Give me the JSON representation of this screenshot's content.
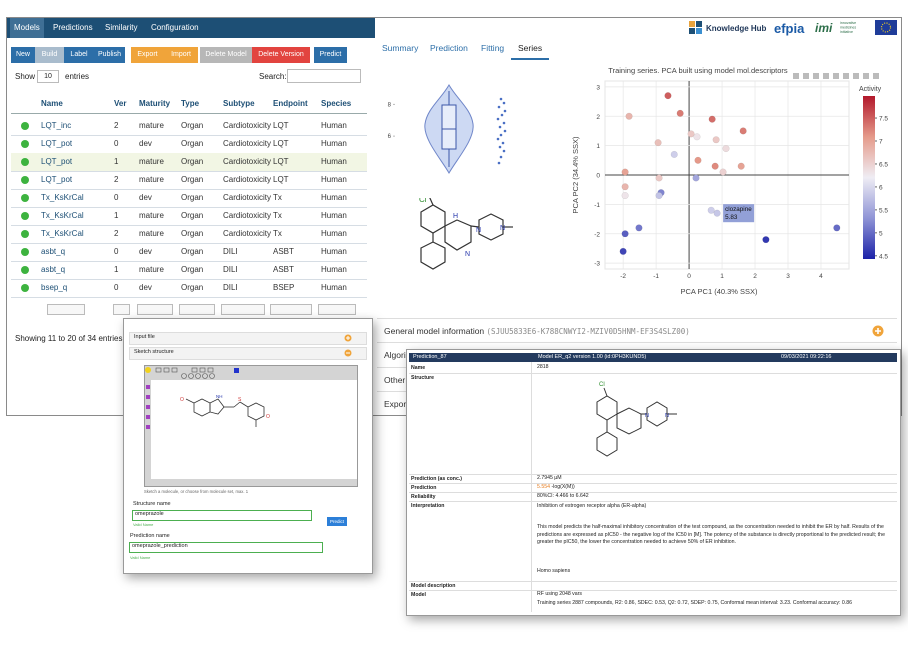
{
  "app": {
    "nav_tabs": [
      "Models",
      "Predictions",
      "Similarity",
      "Configuration"
    ],
    "buttons": [
      "New",
      "Build",
      "Label",
      "Publish",
      "Export",
      "Import",
      "Delete Model",
      "Delete Version",
      "Predict"
    ],
    "show_label": "Show",
    "page_size": "10",
    "entries_label": "entries",
    "search_label": "Search:",
    "table": {
      "columns": [
        "Name",
        "Ver",
        "Maturity",
        "Type",
        "Subtype",
        "Endpoint",
        "Species"
      ],
      "rows": [
        [
          "LQT_inc",
          "2",
          "mature",
          "Organ",
          "Cardiotoxicity",
          "LQT",
          "Human"
        ],
        [
          "LQT_pot",
          "0",
          "dev",
          "Organ",
          "Cardiotoxicity",
          "LQT",
          "Human"
        ],
        [
          "LQT_pot",
          "1",
          "mature",
          "Organ",
          "Cardiotoxicity",
          "LQT",
          "Human"
        ],
        [
          "LQT_pot",
          "2",
          "mature",
          "Organ",
          "Cardiotoxicity",
          "LQT",
          "Human"
        ],
        [
          "Tx_KsKrCal",
          "0",
          "dev",
          "Organ",
          "Cardiotoxicity",
          "Tx",
          "Human"
        ],
        [
          "Tx_KsKrCal",
          "1",
          "mature",
          "Organ",
          "Cardiotoxicity",
          "Tx",
          "Human"
        ],
        [
          "Tx_KsKrCal",
          "2",
          "mature",
          "Organ",
          "Cardiotoxicity",
          "Tx",
          "Human"
        ],
        [
          "asbt_q",
          "0",
          "dev",
          "Organ",
          "DILI",
          "ASBT",
          "Human"
        ],
        [
          "asbt_q",
          "1",
          "mature",
          "Organ",
          "DILI",
          "ASBT",
          "Human"
        ],
        [
          "bsep_q",
          "0",
          "dev",
          "Organ",
          "DILI",
          "BSEP",
          "Human"
        ]
      ]
    },
    "footer": "Showing 11 to 20 of 34 entries"
  },
  "logos": {
    "knowledge_hub": "Knowledge Hub",
    "efpia": "efpia",
    "imi": "imi",
    "imi_caption": [
      "innovative",
      "medicines",
      "initiative"
    ]
  },
  "detail_tabs": [
    "Summary",
    "Prediction",
    "Fitting",
    "Series"
  ],
  "violin": {
    "ylim": [
      3.3,
      9.6
    ],
    "yticks": [
      6,
      8
    ]
  },
  "chart_data": {
    "type": "scatter",
    "title": "Training series. PCA built using model mol.descriptors",
    "x_label": "PCA PC1 (40.3% SSX)",
    "y_label": "PCA PC2 (34.4% SSX)",
    "xlim": [
      -2.55,
      4.85
    ],
    "ylim": [
      -3.2,
      3.2
    ],
    "xticks": [
      -2,
      -1,
      0,
      1,
      2,
      3,
      4
    ],
    "yticks": [
      -3,
      -2,
      -1,
      0,
      1,
      2,
      3
    ],
    "grid": true,
    "x": [
      -0.64,
      -0.27,
      -1.82,
      0.7,
      1.64,
      0.06,
      0.24,
      -0.94,
      0.82,
      1.12,
      -0.45,
      0.27,
      0.79,
      1.58,
      1.03,
      -1.94,
      -0.91,
      0.21,
      -1.94,
      -0.85,
      -0.91,
      -1.94,
      0.67,
      0.85,
      -1.52,
      -1.94,
      2.33,
      4.48,
      -2.0
    ],
    "y": [
      2.7,
      2.1,
      2.0,
      1.9,
      1.5,
      1.4,
      1.3,
      1.1,
      1.2,
      0.9,
      0.7,
      0.5,
      0.3,
      0.3,
      0.1,
      0.1,
      -0.1,
      -0.1,
      -0.4,
      -0.6,
      -0.7,
      -0.7,
      -1.2,
      -1.3,
      -1.8,
      -2.0,
      -2.2,
      -1.8,
      -2.6
    ],
    "values": [
      7.5,
      7.3,
      6.8,
      7.4,
      7.3,
      6.6,
      6.3,
      6.7,
      6.6,
      6.4,
      5.9,
      7.1,
      7.2,
      7.0,
      6.5,
      7.0,
      6.6,
      5.5,
      6.8,
      5.2,
      5.8,
      6.3,
      5.9,
      5.83,
      5.1,
      4.9,
      4.6,
      5.0,
      4.7
    ],
    "colorbar": {
      "title": "Activity",
      "lim": [
        4.43,
        7.98
      ],
      "ticks": [
        4.5,
        5,
        5.5,
        6,
        6.5,
        7,
        7.5
      ],
      "colors": [
        "#1c22a8",
        "#8f94d6",
        "#efedf4",
        "#e59a8a",
        "#b2182b"
      ]
    },
    "annotation": {
      "text": "clozapine",
      "value": 5.83,
      "x": 0.85,
      "y": -1.3
    }
  },
  "sections": {
    "general_title": "General model information",
    "general_id": "(SJUU5833E6-K788CNWYI2-MZIV0D5HNM-EF3S4SLZ00)",
    "others": [
      "Algori",
      "Other",
      "Expor"
    ]
  },
  "sketch_dialog": {
    "panels": [
      "Input file",
      "Sketch structure"
    ],
    "hint": "Sketch a molecule, or choose from molecule set, max. 1",
    "structure_name_label": "Structure name",
    "structure_name": "omeprazole",
    "structure_valid": "Valid Name",
    "predict": "Predict",
    "prediction_name_label": "Prediction name",
    "prediction_name": "omeprazole_prediction",
    "prediction_valid": "Valid Name"
  },
  "prediction_dialog": {
    "header": [
      "Prediction_87",
      "Model ER_q2 version 1.00 (id:0PH3KUND5)",
      "09/03/2021 09:22:16"
    ],
    "name_label": "Name",
    "name": "2818",
    "structure_label": "Structure",
    "conc_label": "Prediction (as conc.)",
    "conc": "2.7945 µM",
    "prediction_label": "Prediction",
    "prediction": "5.554",
    "prediction_unit": "-log(X(M))",
    "reliability_label": "Reliability",
    "reliability": "80%CI: 4.466 to 6.642",
    "interpretation_label": "Interpretation",
    "interpretation": [
      "Inhibition of estrogen receptor alpha (ER-alpha)",
      "This model predicts the half-maximal inhibitory concentration of the test compound, as the concentration needed to inhibit the ER by half. Results of the predictions are expressed as pIC50 - the negative log of the IC50 in [M]. The potency of the substance is directly proportional to the predicted result; the greater the pIC50, the lower the concentration needed to achieve 50% of ER inhibition.",
      "Homo sapiens"
    ],
    "description_label": "Model description",
    "model_label": "Model",
    "model": [
      "RF using 2048 vars",
      "Training series 2887 compounds, R2: 0.86, SDEC: 0.53, Q2: 0.72, SDEP: 0.75, Conformal mean interval: 3.23. Conformal accuracy: 0.86"
    ]
  }
}
